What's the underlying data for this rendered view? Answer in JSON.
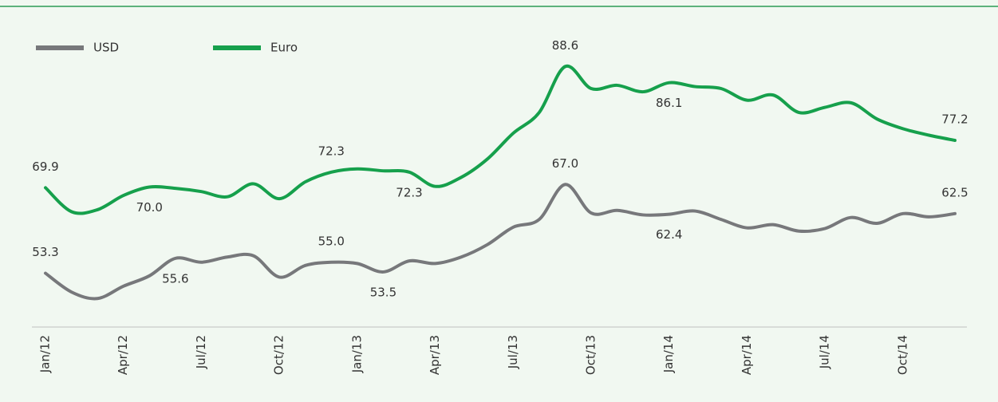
{
  "chart_data": {
    "type": "line",
    "categories": [
      "Jan/12",
      null,
      null,
      "Apr/12",
      null,
      null,
      "Jul/12",
      null,
      null,
      "Oct/12",
      null,
      null,
      "Jan/13",
      null,
      null,
      "Apr/13",
      null,
      null,
      "Jul/13",
      null,
      null,
      "Oct/13",
      null,
      null,
      "Jan/14",
      null,
      null,
      "Apr/14",
      null,
      null,
      "Jul/14",
      null,
      null,
      "Oct/14",
      null,
      null
    ],
    "series": [
      {
        "name": "USD",
        "color": "#77787b",
        "values": [
          53.3,
          50.4,
          49.4,
          51.3,
          52.9,
          55.6,
          55.0,
          55.8,
          56.0,
          52.7,
          54.5,
          55.0,
          54.8,
          53.5,
          55.2,
          54.8,
          55.8,
          57.7,
          60.4,
          61.6,
          67.0,
          62.6,
          63.0,
          62.3,
          62.4,
          62.9,
          61.6,
          60.3,
          60.8,
          59.8,
          60.2,
          61.9,
          61.0,
          62.5,
          62.0,
          62.5
        ],
        "value_labels": [
          "53.3",
          null,
          null,
          null,
          null,
          "55.6",
          null,
          null,
          null,
          null,
          null,
          "55.0",
          null,
          "53.5",
          null,
          null,
          null,
          null,
          null,
          null,
          "67.0",
          null,
          null,
          null,
          "62.4",
          null,
          null,
          null,
          null,
          null,
          null,
          null,
          null,
          null,
          null,
          "62.5"
        ]
      },
      {
        "name": "Euro",
        "color": "#16a04c",
        "axis": "y2",
        "values": [
          69.9,
          66.2,
          66.5,
          68.7,
          70.0,
          69.8,
          69.3,
          68.5,
          70.5,
          68.2,
          70.8,
          72.3,
          72.8,
          72.5,
          72.3,
          70.1,
          71.5,
          74.3,
          78.3,
          81.5,
          88.6,
          85.2,
          85.7,
          84.7,
          86.1,
          85.5,
          85.2,
          83.4,
          84.2,
          81.5,
          82.3,
          83.0,
          80.5,
          79.0,
          78.0,
          77.2
        ],
        "value_labels": [
          "69.9",
          null,
          null,
          null,
          "70.0",
          null,
          null,
          null,
          null,
          null,
          null,
          "72.3",
          null,
          null,
          "72.3",
          null,
          null,
          null,
          null,
          null,
          "88.6",
          null,
          null,
          null,
          "86.1",
          null,
          null,
          null,
          null,
          null,
          null,
          null,
          null,
          null,
          null,
          "77.2"
        ]
      }
    ],
    "ylim": [
      45,
      93
    ],
    "y2lim": [
      48.4,
      96.4
    ],
    "legend": "top-left"
  }
}
